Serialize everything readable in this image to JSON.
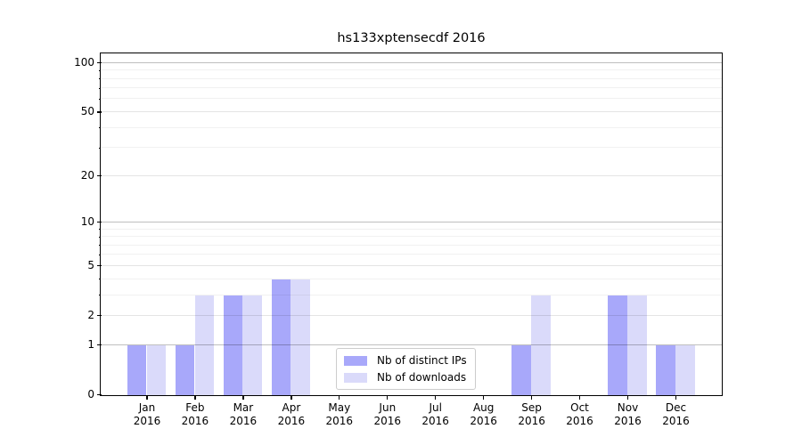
{
  "chart_data": {
    "type": "bar",
    "title": "hs133xptensecdf 2016",
    "categories": [
      "Jan",
      "Feb",
      "Mar",
      "Apr",
      "May",
      "Jun",
      "Jul",
      "Aug",
      "Sep",
      "Oct",
      "Nov",
      "Dec"
    ],
    "x_year_label": "2016",
    "series": [
      {
        "name": "Nb of distinct IPs",
        "color": "#a8a8fa",
        "values": [
          1,
          1,
          3,
          4,
          0,
          0,
          0,
          0,
          1,
          0,
          3,
          1
        ]
      },
      {
        "name": "Nb of downloads",
        "color": "#dadafa",
        "values": [
          1,
          3,
          3,
          4,
          0,
          0,
          0,
          0,
          3,
          0,
          3,
          1
        ]
      }
    ],
    "y_axis": {
      "scale": "log1p",
      "tick_values": [
        0,
        1,
        2,
        5,
        10,
        20,
        50,
        100
      ],
      "tick_labels": [
        "0",
        "1",
        "2",
        "5",
        "10",
        "20",
        "50",
        "100"
      ],
      "minor_tick_values": [
        3,
        4,
        6,
        7,
        8,
        9,
        30,
        40,
        60,
        70,
        80,
        90
      ],
      "decade_values": [
        1,
        10,
        100
      ],
      "top_value": 115
    },
    "legend": {
      "position": "lower-center"
    },
    "colors": {
      "grid_decade": "rgba(0,0,0,0.25)",
      "grid_labeled": "rgba(0,0,0,0.105)",
      "grid_minor": "rgba(0,0,0,0.055)",
      "frame": "#000000",
      "legend_border": "#cccccc",
      "background": "#ffffff"
    }
  }
}
